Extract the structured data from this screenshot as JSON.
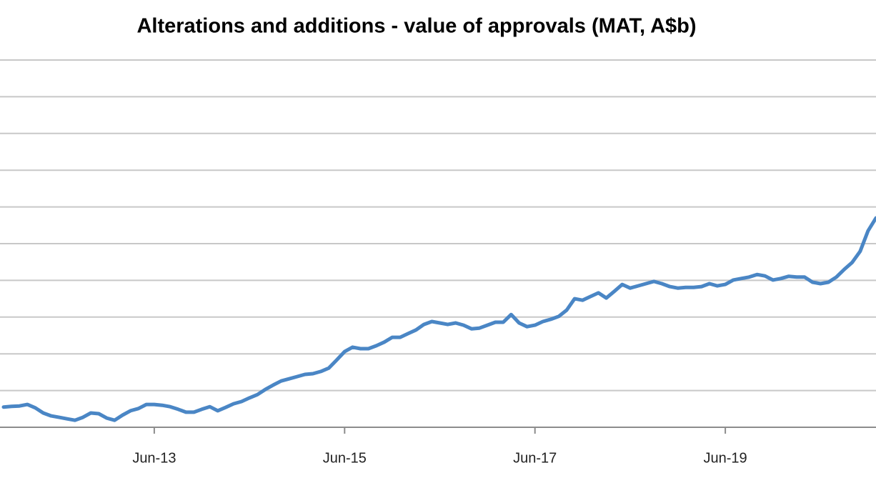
{
  "chart_data": {
    "type": "line",
    "title": "Alterations and additions - value of approvals (MAT, A$b)",
    "categories": [
      null,
      null,
      null,
      null,
      null,
      null,
      null,
      null,
      null,
      null,
      null,
      null,
      null,
      null,
      null,
      null,
      null,
      null,
      null,
      "Jun-13",
      null,
      null,
      null,
      null,
      null,
      null,
      null,
      null,
      null,
      null,
      null,
      null,
      null,
      null,
      null,
      null,
      null,
      null,
      null,
      null,
      null,
      null,
      null,
      "Jun-15",
      null,
      null,
      null,
      null,
      null,
      null,
      null,
      null,
      null,
      null,
      null,
      null,
      null,
      null,
      null,
      null,
      null,
      null,
      null,
      null,
      null,
      null,
      null,
      "Jun-17",
      null,
      null,
      null,
      null,
      null,
      null,
      null,
      null,
      null,
      null,
      null,
      null,
      null,
      null,
      null,
      null,
      null,
      null,
      null,
      null,
      null,
      null,
      null,
      "Jun-19",
      null,
      null,
      null,
      null,
      null,
      null,
      null,
      null,
      null,
      null,
      null,
      null,
      null,
      null,
      null,
      null,
      null,
      null,
      null
    ],
    "values": [
      0.55,
      0.57,
      0.58,
      0.62,
      0.53,
      0.39,
      0.31,
      0.27,
      0.23,
      0.19,
      0.27,
      0.39,
      0.37,
      0.25,
      0.19,
      0.33,
      0.45,
      0.51,
      0.62,
      0.62,
      0.6,
      0.56,
      0.49,
      0.41,
      0.41,
      0.49,
      0.56,
      0.45,
      0.54,
      0.64,
      0.7,
      0.8,
      0.89,
      1.03,
      1.15,
      1.26,
      1.32,
      1.38,
      1.44,
      1.46,
      1.52,
      1.61,
      1.83,
      2.06,
      2.18,
      2.14,
      2.14,
      2.22,
      2.32,
      2.45,
      2.45,
      2.55,
      2.65,
      2.8,
      2.88,
      2.84,
      2.8,
      2.84,
      2.78,
      2.68,
      2.7,
      2.78,
      2.86,
      2.86,
      3.07,
      2.84,
      2.74,
      2.78,
      2.88,
      2.94,
      3.02,
      3.19,
      3.5,
      3.46,
      3.56,
      3.66,
      3.52,
      3.7,
      3.89,
      3.79,
      3.85,
      3.91,
      3.97,
      3.91,
      3.83,
      3.79,
      3.81,
      3.81,
      3.83,
      3.91,
      3.85,
      3.89,
      4.01,
      4.05,
      4.09,
      4.16,
      4.12,
      4.01,
      4.05,
      4.11,
      4.09,
      4.09,
      3.95,
      3.91,
      3.95,
      4.09,
      4.3,
      4.49,
      4.79,
      5.35,
      5.7
    ],
    "color": "#4a86c5",
    "ylim": [
      0,
      10
    ],
    "yticks": [
      1,
      2,
      3,
      4,
      5,
      6,
      7,
      8,
      9,
      10
    ],
    "grid": true
  }
}
